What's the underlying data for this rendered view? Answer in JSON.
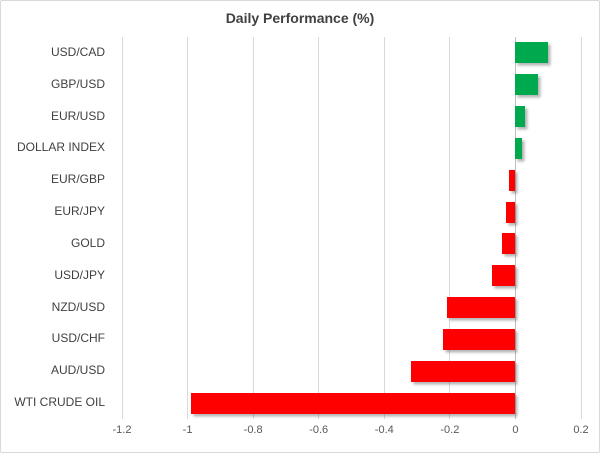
{
  "chart": {
    "title": "Daily Performance (%)"
  },
  "chart_data": {
    "type": "bar",
    "orientation": "horizontal",
    "title": "Daily Performance (%)",
    "xlabel": "",
    "ylabel": "",
    "categories": [
      "USD/CAD",
      "GBP/USD",
      "EUR/USD",
      "DOLLAR INDEX",
      "EUR/GBP",
      "EUR/JPY",
      "GOLD",
      "USD/JPY",
      "NZD/USD",
      "USD/CHF",
      "AUD/USD",
      "WTI CRUDE OIL"
    ],
    "values": [
      0.1,
      0.07,
      0.03,
      0.02,
      -0.02,
      -0.03,
      -0.04,
      -0.07,
      -0.21,
      -0.22,
      -0.32,
      -0.99
    ],
    "xlim": [
      -1.2,
      0.2
    ],
    "xticks": [
      -1.2,
      -1,
      -0.8,
      -0.6,
      -0.4,
      -0.2,
      0,
      0.2
    ],
    "xtick_labels": [
      "-1.2",
      "-1",
      "-0.8",
      "-0.6",
      "-0.4",
      "-0.2",
      "0",
      "0.2"
    ],
    "grid": true,
    "legend": "none",
    "positive_color": "#00A94E",
    "negative_color": "#FF0000",
    "gridline_color": "#D9D9D9"
  }
}
